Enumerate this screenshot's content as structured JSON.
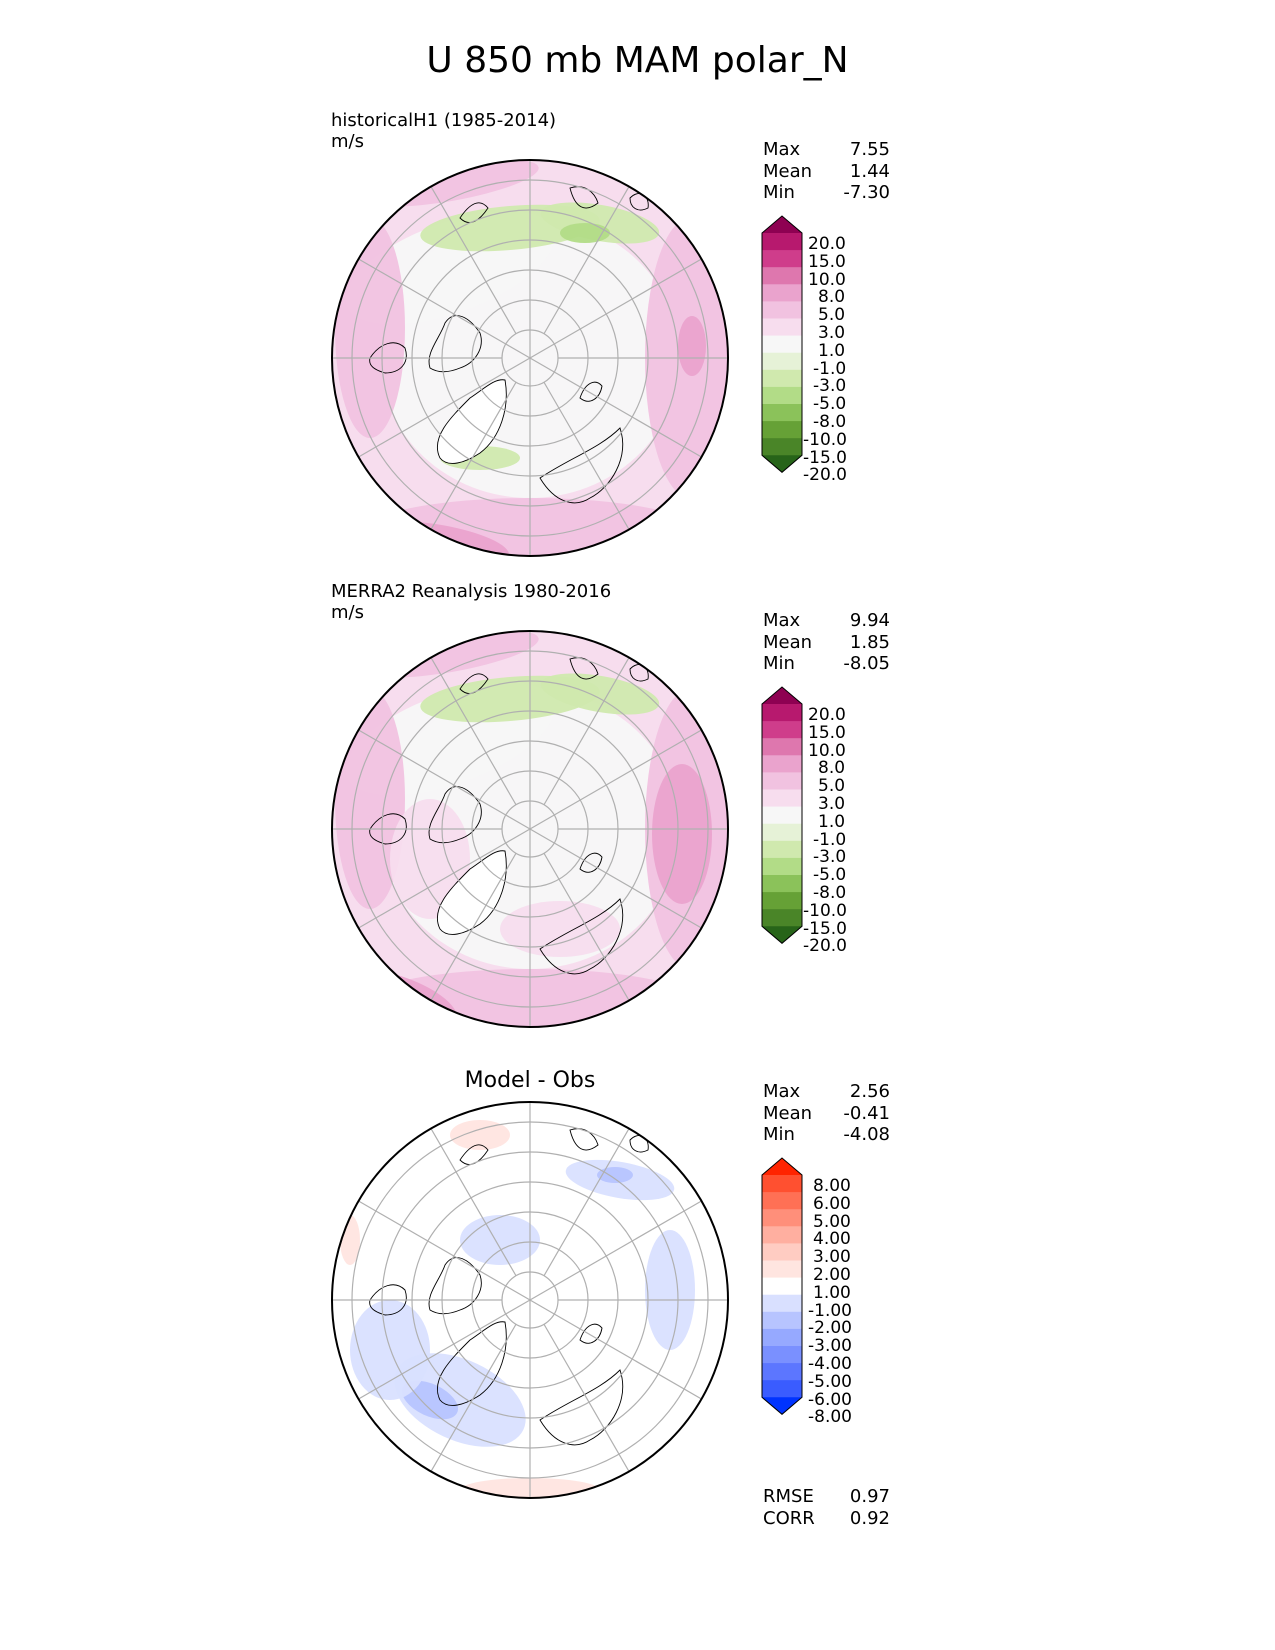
{
  "title": "U 850 mb MAM polar_N",
  "panels": [
    {
      "subtitle_line1": "historicalH1 (1985-2014)",
      "subtitle_line2": "m/s",
      "stats": [
        {
          "label": "Max",
          "value": "7.55"
        },
        {
          "label": "Mean",
          "value": "1.44"
        },
        {
          "label": "Min",
          "value": "-7.30"
        }
      ],
      "colorbar_ticks": [
        "20.0",
        "15.0",
        "10.0",
        "8.0",
        "5.0",
        "3.0",
        "1.0",
        "-1.0",
        "-3.0",
        "-5.0",
        "-8.0",
        "-10.0",
        "-15.0",
        "-20.0"
      ]
    },
    {
      "subtitle_line1": "MERRA2 Reanalysis 1980-2016",
      "subtitle_line2": "m/s",
      "stats": [
        {
          "label": "Max",
          "value": "9.94"
        },
        {
          "label": "Mean",
          "value": "1.85"
        },
        {
          "label": "Min",
          "value": "-8.05"
        }
      ],
      "colorbar_ticks": [
        "20.0",
        "15.0",
        "10.0",
        "8.0",
        "5.0",
        "3.0",
        "1.0",
        "-1.0",
        "-3.0",
        "-5.0",
        "-8.0",
        "-10.0",
        "-15.0",
        "-20.0"
      ]
    },
    {
      "diff_title": "Model - Obs",
      "stats": [
        {
          "label": "Max",
          "value": "2.56"
        },
        {
          "label": "Mean",
          "value": "-0.41"
        },
        {
          "label": "Min",
          "value": "-4.08"
        }
      ],
      "colorbar_ticks": [
        "8.00",
        "6.00",
        "5.00",
        "4.00",
        "3.00",
        "2.00",
        "1.00",
        "-1.00",
        "-2.00",
        "-3.00",
        "-4.00",
        "-5.00",
        "-6.00",
        "-8.00"
      ],
      "metrics": [
        {
          "label": "RMSE",
          "value": "0.97"
        },
        {
          "label": "CORR",
          "value": "0.92"
        }
      ]
    }
  ],
  "colors": {
    "pink_green": [
      "#8e0152",
      "#b7196e",
      "#cf3d8b",
      "#de77ae",
      "#eaa3cd",
      "#f1c2e0",
      "#f7ddee",
      "#f7f7f7",
      "#e6f2d7",
      "#d0e9ae",
      "#b2dc87",
      "#8bc25a",
      "#66a136",
      "#4a8528",
      "#276419"
    ],
    "red_blue": [
      "#ff2400",
      "#ff5030",
      "#ff7055",
      "#ff8f7a",
      "#ffafa0",
      "#ffccc2",
      "#ffe5e0",
      "#ffffff",
      "#d9e0ff",
      "#b7c4ff",
      "#96a9ff",
      "#7a90ff",
      "#5c76ff",
      "#3a5cff",
      "#0033ff"
    ]
  },
  "chart_data": [
    {
      "type": "heatmap",
      "title": "historicalH1 (1985-2014)",
      "units": "m/s",
      "projection": "north polar stereographic",
      "levels": [
        -20,
        -15,
        -10,
        -8,
        -5,
        -3,
        -1,
        1,
        3,
        5,
        8,
        10,
        15,
        20
      ],
      "stats": {
        "max": 7.55,
        "mean": 1.44,
        "min": -7.3
      }
    },
    {
      "type": "heatmap",
      "title": "MERRA2 Reanalysis 1980-2016",
      "units": "m/s",
      "projection": "north polar stereographic",
      "levels": [
        -20,
        -15,
        -10,
        -8,
        -5,
        -3,
        -1,
        1,
        3,
        5,
        8,
        10,
        15,
        20
      ],
      "stats": {
        "max": 9.94,
        "mean": 1.85,
        "min": -8.05
      }
    },
    {
      "type": "heatmap",
      "title": "Model - Obs",
      "projection": "north polar stereographic",
      "levels": [
        -8,
        -6,
        -5,
        -4,
        -3,
        -2,
        -1,
        1,
        2,
        3,
        4,
        5,
        6,
        8
      ],
      "stats": {
        "max": 2.56,
        "mean": -0.41,
        "min": -4.08
      },
      "metrics": {
        "rmse": 0.97,
        "corr": 0.92
      }
    }
  ]
}
